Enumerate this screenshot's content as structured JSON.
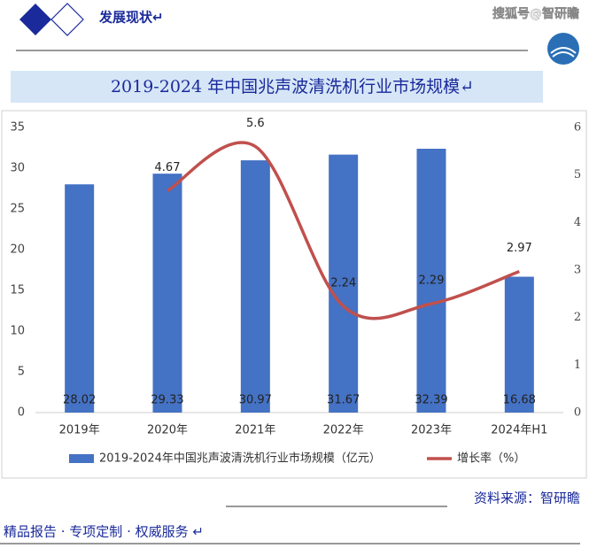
{
  "header": {
    "title": "发展现状↵",
    "watermark": "搜狐号@智研瞻"
  },
  "chart_data": {
    "type": "bar",
    "title": "2019-2024 年中国兆声波清洗机行业市场规模↵",
    "categories": [
      "2019年",
      "2020年",
      "2021年",
      "2022年",
      "2023年",
      "2024年H1"
    ],
    "series": [
      {
        "name": "2019-2024年中国兆声波清洗机行业市场规模（亿元）",
        "type": "bar",
        "color": "#4472c4",
        "values": [
          28.02,
          29.33,
          30.97,
          31.67,
          32.39,
          16.68
        ]
      },
      {
        "name": "增长率（%）",
        "type": "line",
        "axis": "y2",
        "color": "#c0504d",
        "values": [
          null,
          4.67,
          5.6,
          2.24,
          2.29,
          2.97
        ]
      }
    ],
    "ylim": [
      0,
      35
    ],
    "yticks": [
      0,
      5,
      10,
      15,
      20,
      25,
      30,
      35
    ],
    "y2lim": [
      0,
      6
    ],
    "y2ticks": [
      0,
      1,
      2,
      3,
      4,
      5,
      6
    ],
    "legend": "bottom"
  },
  "source": "资料来源：智研瞻",
  "footer": "精品报告 · 专项定制 · 权威服务 ↵"
}
